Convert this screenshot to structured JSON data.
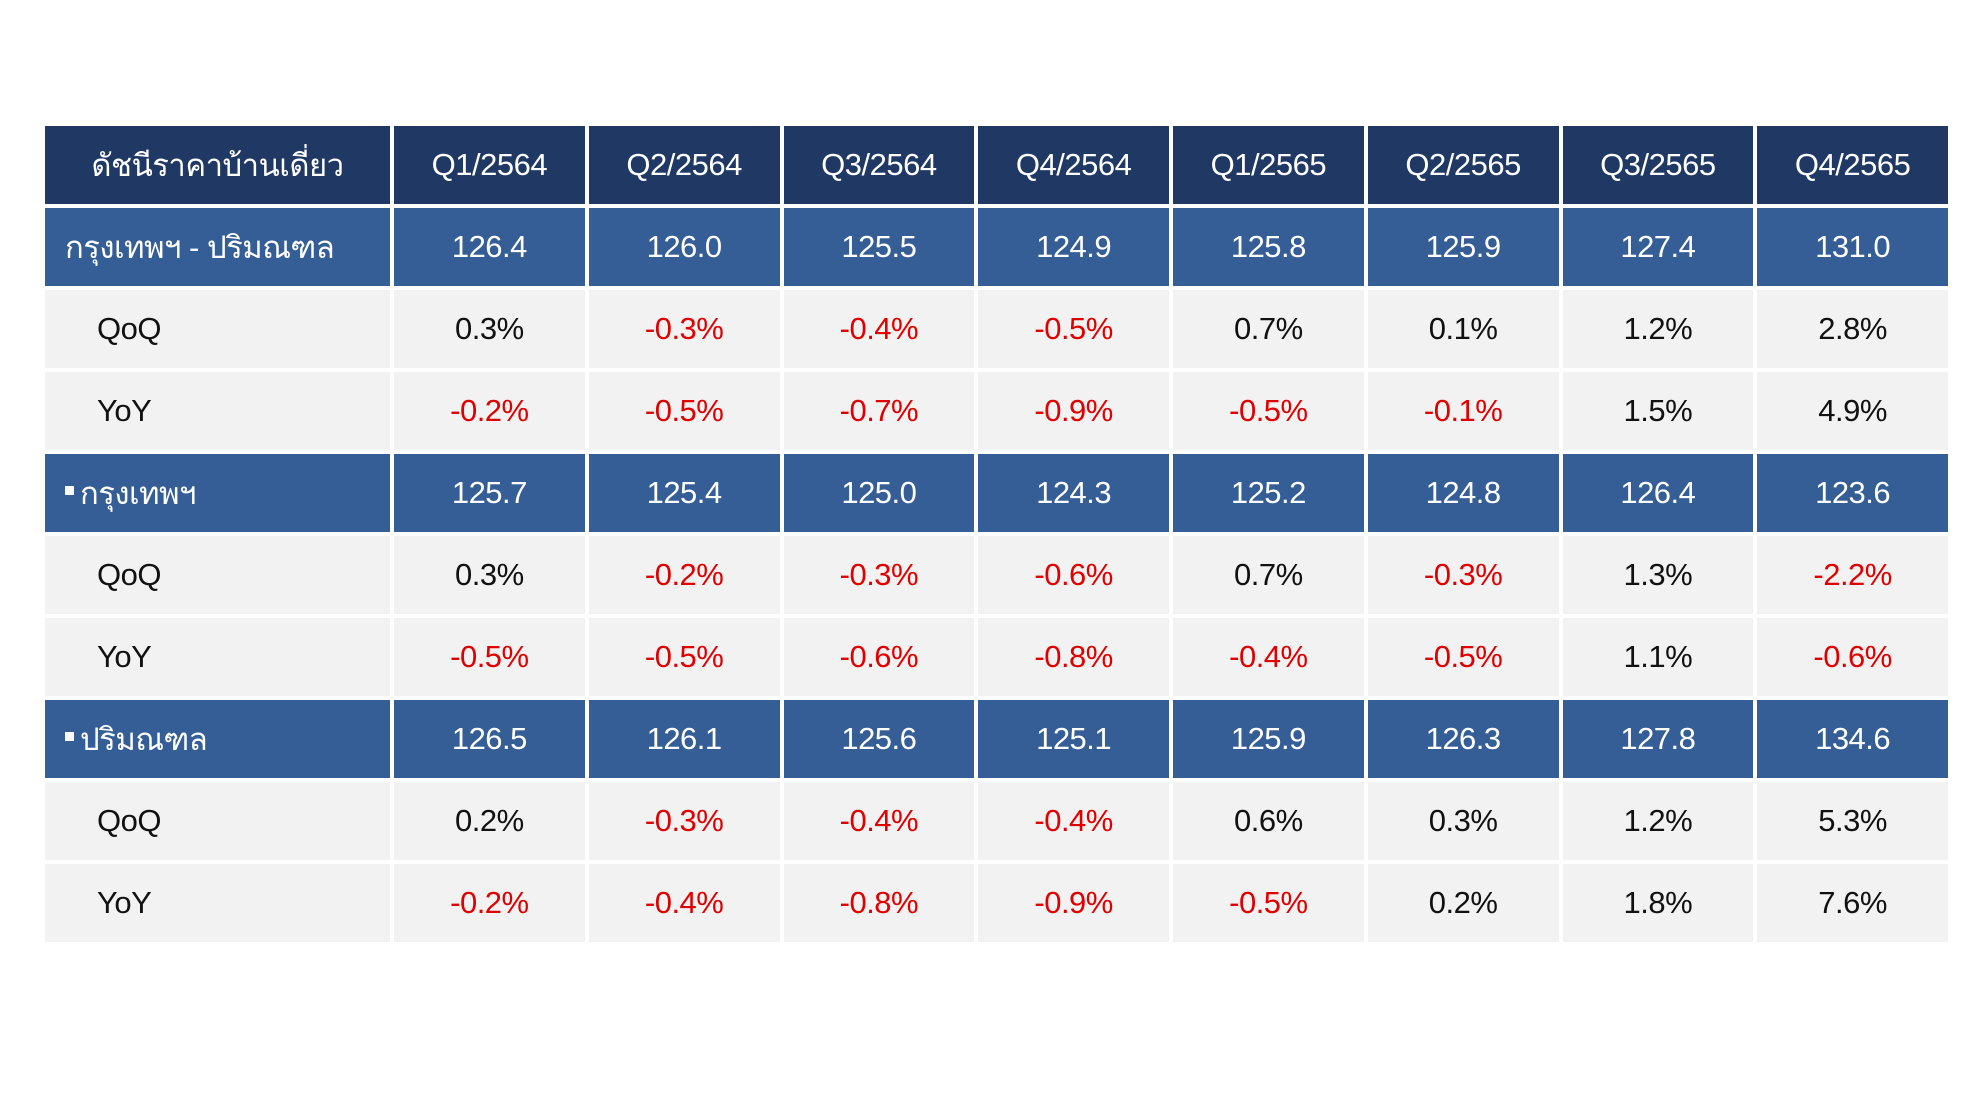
{
  "chart_data": {
    "type": "table",
    "columns": [
      "ดัชนีราคาบ้านเดี่ยว",
      "Q1/2564",
      "Q2/2564",
      "Q3/2564",
      "Q4/2564",
      "Q1/2565",
      "Q2/2565",
      "Q3/2565",
      "Q4/2565"
    ],
    "rows": [
      {
        "label": "กรุงเทพฯ - ปริมณฑล",
        "kind": "group",
        "bullet": false,
        "values": [
          "126.4",
          "126.0",
          "125.5",
          "124.9",
          "125.8",
          "125.9",
          "127.4",
          "131.0"
        ]
      },
      {
        "label": "QoQ",
        "kind": "sub",
        "bullet": false,
        "values": [
          "0.3%",
          "-0.3%",
          "-0.4%",
          "-0.5%",
          "0.7%",
          "0.1%",
          "1.2%",
          "2.8%"
        ]
      },
      {
        "label": "YoY",
        "kind": "sub",
        "bullet": false,
        "values": [
          "-0.2%",
          "-0.5%",
          "-0.7%",
          "-0.9%",
          "-0.5%",
          "-0.1%",
          "1.5%",
          "4.9%"
        ]
      },
      {
        "label": "กรุงเทพฯ",
        "kind": "group",
        "bullet": true,
        "values": [
          "125.7",
          "125.4",
          "125.0",
          "124.3",
          "125.2",
          "124.8",
          "126.4",
          "123.6"
        ]
      },
      {
        "label": "QoQ",
        "kind": "sub",
        "bullet": false,
        "values": [
          "0.3%",
          "-0.2%",
          "-0.3%",
          "-0.6%",
          "0.7%",
          "-0.3%",
          "1.3%",
          "-2.2%"
        ]
      },
      {
        "label": "YoY",
        "kind": "sub",
        "bullet": false,
        "values": [
          "-0.5%",
          "-0.5%",
          "-0.6%",
          "-0.8%",
          "-0.4%",
          "-0.5%",
          "1.1%",
          "-0.6%"
        ]
      },
      {
        "label": "ปริมณฑล",
        "kind": "group",
        "bullet": true,
        "values": [
          "126.5",
          "126.1",
          "125.6",
          "125.1",
          "125.9",
          "126.3",
          "127.8",
          "134.6"
        ]
      },
      {
        "label": "QoQ",
        "kind": "sub",
        "bullet": false,
        "values": [
          "0.2%",
          "-0.3%",
          "-0.4%",
          "-0.4%",
          "0.6%",
          "0.3%",
          "1.2%",
          "5.3%"
        ]
      },
      {
        "label": "YoY",
        "kind": "sub",
        "bullet": false,
        "values": [
          "-0.2%",
          "-0.4%",
          "-0.8%",
          "-0.9%",
          "-0.5%",
          "0.2%",
          "1.8%",
          "7.6%"
        ]
      }
    ]
  },
  "colors": {
    "header_bg": "#1f3864",
    "group_bg": "#355e96",
    "sub_bg": "#f2f2f2",
    "negative_text": "#e00000"
  }
}
